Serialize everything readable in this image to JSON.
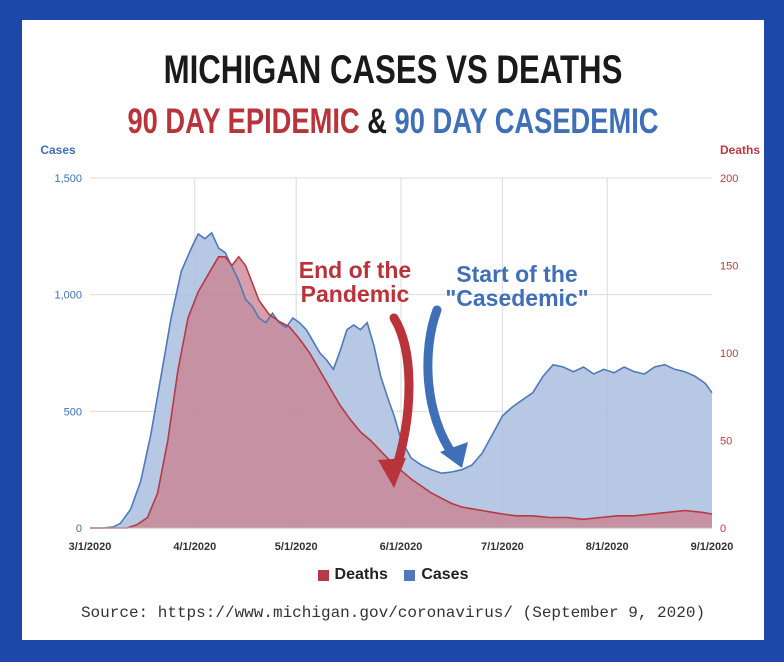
{
  "title": "MICHIGAN CASES VS DEATHS",
  "subtitle": {
    "part1": "90 DAY EPIDEMIC",
    "amp": "&",
    "part2": "90 DAY CASEDEMIC"
  },
  "colors": {
    "frame": "#1d47a8",
    "cases_fill": "#a9bedf",
    "cases_stroke": "#4f79b8",
    "deaths_fill": "#c97f8e",
    "deaths_stroke": "#b53a45",
    "red_text": "#b9333a",
    "blue_text": "#3f6fb6"
  },
  "annotations": {
    "red": [
      "End of the",
      "Pandemic"
    ],
    "blue": [
      "Start of the",
      "\"Casedemic\""
    ]
  },
  "legend": {
    "deaths": "Deaths",
    "cases": "Cases"
  },
  "source": "Source: https://www.michigan.gov/coronavirus/ (September 9, 2020)",
  "chart_data": {
    "type": "area",
    "left_axis": {
      "label": "Cases",
      "ticks": [
        0,
        500,
        1000,
        1500
      ],
      "tick_labels": [
        "0",
        "500",
        "1,000",
        "1,500"
      ],
      "ylim": [
        0,
        1500
      ]
    },
    "right_axis": {
      "label": "Deaths",
      "ticks": [
        0,
        50,
        100,
        150,
        200
      ],
      "tick_labels": [
        "0",
        "50",
        "100",
        "150",
        "200"
      ],
      "ylim": [
        0,
        200
      ]
    },
    "x_axis": {
      "tick_labels": [
        "3/1/2020",
        "4/1/2020",
        "5/1/2020",
        "6/1/2020",
        "7/1/2020",
        "8/1/2020",
        "9/1/2020"
      ],
      "xlim": [
        "2020-03-01",
        "2020-09-01"
      ]
    },
    "grid": true,
    "legend_position": "bottom",
    "series": [
      {
        "name": "Cases",
        "axis": "left",
        "points": [
          [
            "2020-03-01",
            0
          ],
          [
            "2020-03-05",
            0
          ],
          [
            "2020-03-08",
            5
          ],
          [
            "2020-03-10",
            20
          ],
          [
            "2020-03-13",
            80
          ],
          [
            "2020-03-16",
            200
          ],
          [
            "2020-03-19",
            400
          ],
          [
            "2020-03-22",
            650
          ],
          [
            "2020-03-25",
            900
          ],
          [
            "2020-03-28",
            1100
          ],
          [
            "2020-03-31",
            1200
          ],
          [
            "2020-04-02",
            1260
          ],
          [
            "2020-04-04",
            1240
          ],
          [
            "2020-04-06",
            1265
          ],
          [
            "2020-04-08",
            1200
          ],
          [
            "2020-04-10",
            1180
          ],
          [
            "2020-04-12",
            1120
          ],
          [
            "2020-04-14",
            1060
          ],
          [
            "2020-04-16",
            980
          ],
          [
            "2020-04-18",
            950
          ],
          [
            "2020-04-20",
            900
          ],
          [
            "2020-04-22",
            880
          ],
          [
            "2020-04-24",
            920
          ],
          [
            "2020-04-26",
            880
          ],
          [
            "2020-04-28",
            860
          ],
          [
            "2020-04-30",
            900
          ],
          [
            "2020-05-02",
            880
          ],
          [
            "2020-05-04",
            850
          ],
          [
            "2020-05-06",
            800
          ],
          [
            "2020-05-08",
            750
          ],
          [
            "2020-05-10",
            720
          ],
          [
            "2020-05-12",
            680
          ],
          [
            "2020-05-14",
            760
          ],
          [
            "2020-05-16",
            850
          ],
          [
            "2020-05-18",
            870
          ],
          [
            "2020-05-20",
            850
          ],
          [
            "2020-05-22",
            880
          ],
          [
            "2020-05-24",
            780
          ],
          [
            "2020-05-26",
            650
          ],
          [
            "2020-05-28",
            560
          ],
          [
            "2020-05-30",
            480
          ],
          [
            "2020-06-01",
            380
          ],
          [
            "2020-06-04",
            300
          ],
          [
            "2020-06-07",
            270
          ],
          [
            "2020-06-10",
            250
          ],
          [
            "2020-06-13",
            235
          ],
          [
            "2020-06-16",
            240
          ],
          [
            "2020-06-19",
            250
          ],
          [
            "2020-06-22",
            270
          ],
          [
            "2020-06-25",
            320
          ],
          [
            "2020-06-28",
            400
          ],
          [
            "2020-07-01",
            480
          ],
          [
            "2020-07-04",
            520
          ],
          [
            "2020-07-07",
            550
          ],
          [
            "2020-07-10",
            580
          ],
          [
            "2020-07-13",
            650
          ],
          [
            "2020-07-16",
            700
          ],
          [
            "2020-07-19",
            690
          ],
          [
            "2020-07-22",
            670
          ],
          [
            "2020-07-25",
            690
          ],
          [
            "2020-07-28",
            660
          ],
          [
            "2020-07-31",
            680
          ],
          [
            "2020-08-03",
            665
          ],
          [
            "2020-08-06",
            690
          ],
          [
            "2020-08-09",
            670
          ],
          [
            "2020-08-12",
            660
          ],
          [
            "2020-08-15",
            690
          ],
          [
            "2020-08-18",
            700
          ],
          [
            "2020-08-21",
            680
          ],
          [
            "2020-08-24",
            670
          ],
          [
            "2020-08-27",
            650
          ],
          [
            "2020-08-30",
            620
          ],
          [
            "2020-09-01",
            580
          ]
        ]
      },
      {
        "name": "Deaths",
        "axis": "right",
        "points": [
          [
            "2020-03-01",
            0
          ],
          [
            "2020-03-12",
            0
          ],
          [
            "2020-03-15",
            2
          ],
          [
            "2020-03-18",
            6
          ],
          [
            "2020-03-21",
            20
          ],
          [
            "2020-03-24",
            50
          ],
          [
            "2020-03-27",
            90
          ],
          [
            "2020-03-30",
            120
          ],
          [
            "2020-04-02",
            135
          ],
          [
            "2020-04-05",
            145
          ],
          [
            "2020-04-08",
            155
          ],
          [
            "2020-04-10",
            155
          ],
          [
            "2020-04-12",
            150
          ],
          [
            "2020-04-14",
            155
          ],
          [
            "2020-04-16",
            150
          ],
          [
            "2020-04-18",
            140
          ],
          [
            "2020-04-20",
            130
          ],
          [
            "2020-04-23",
            122
          ],
          [
            "2020-04-26",
            118
          ],
          [
            "2020-04-29",
            115
          ],
          [
            "2020-05-02",
            108
          ],
          [
            "2020-05-05",
            100
          ],
          [
            "2020-05-08",
            90
          ],
          [
            "2020-05-11",
            80
          ],
          [
            "2020-05-14",
            70
          ],
          [
            "2020-05-17",
            62
          ],
          [
            "2020-05-20",
            55
          ],
          [
            "2020-05-23",
            50
          ],
          [
            "2020-05-26",
            44
          ],
          [
            "2020-05-29",
            38
          ],
          [
            "2020-06-01",
            33
          ],
          [
            "2020-06-04",
            28
          ],
          [
            "2020-06-07",
            24
          ],
          [
            "2020-06-10",
            20
          ],
          [
            "2020-06-13",
            17
          ],
          [
            "2020-06-16",
            14
          ],
          [
            "2020-06-19",
            12
          ],
          [
            "2020-06-22",
            11
          ],
          [
            "2020-06-25",
            10
          ],
          [
            "2020-06-28",
            9
          ],
          [
            "2020-07-01",
            8
          ],
          [
            "2020-07-05",
            7
          ],
          [
            "2020-07-10",
            7
          ],
          [
            "2020-07-15",
            6
          ],
          [
            "2020-07-20",
            6
          ],
          [
            "2020-07-25",
            5
          ],
          [
            "2020-07-30",
            6
          ],
          [
            "2020-08-04",
            7
          ],
          [
            "2020-08-09",
            7
          ],
          [
            "2020-08-14",
            8
          ],
          [
            "2020-08-19",
            9
          ],
          [
            "2020-08-24",
            10
          ],
          [
            "2020-08-29",
            9
          ],
          [
            "2020-09-01",
            8
          ]
        ]
      }
    ]
  }
}
